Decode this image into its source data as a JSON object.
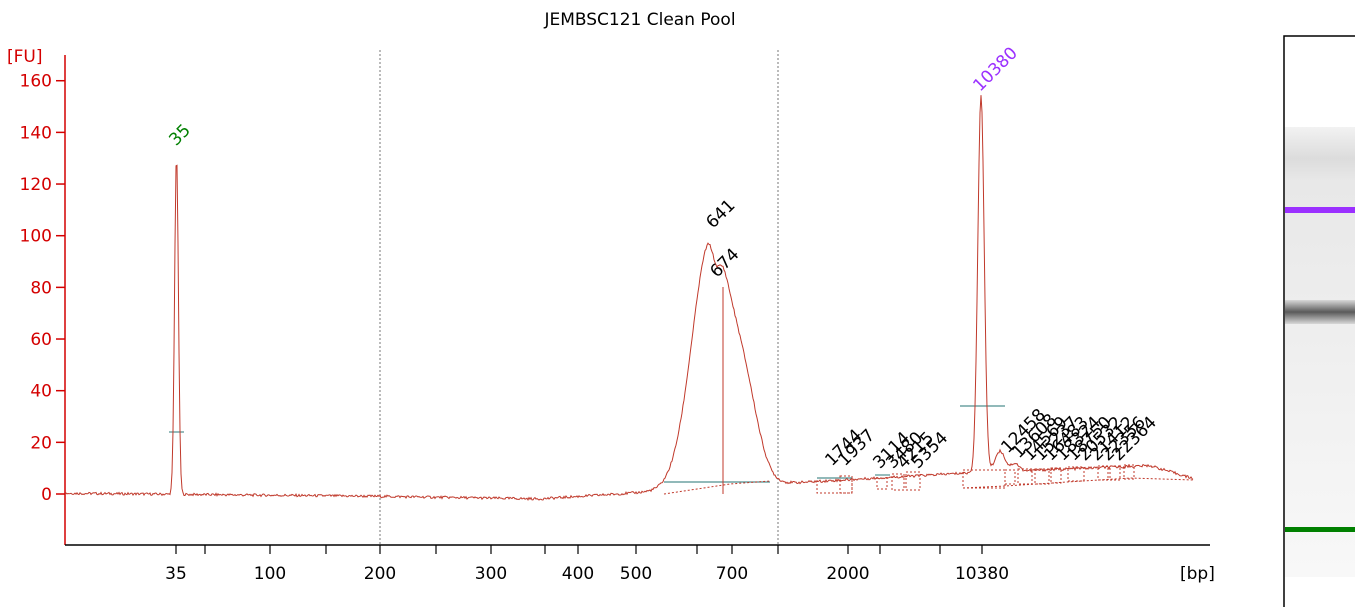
{
  "chart_data": {
    "type": "line",
    "title": "JEMBSC121 Clean Pool",
    "ylabel": "[FU]",
    "xlabel": "[bp]",
    "ylim": [
      -20,
      165
    ],
    "y_ticks": [
      0,
      20,
      40,
      60,
      80,
      100,
      120,
      140,
      160
    ],
    "x_tick_labels": [
      "35",
      "100",
      "200",
      "300",
      "400",
      "500",
      "700",
      "2000",
      "10380"
    ],
    "peak_labels": [
      {
        "label": "35",
        "fu": 133,
        "color": "#008000"
      },
      {
        "label": "641",
        "fu": 101,
        "color": "#000000"
      },
      {
        "label": "674",
        "fu": 82,
        "color": "#000000"
      },
      {
        "label": "10380",
        "fu": 154,
        "color": "#9b30ff"
      },
      {
        "label": "1744",
        "fu": 9,
        "color": "#000000"
      },
      {
        "label": "1937",
        "fu": 9,
        "color": "#000000"
      },
      {
        "label": "3114",
        "fu": 8,
        "color": "#000000"
      },
      {
        "label": "3480",
        "fu": 8,
        "color": "#000000"
      },
      {
        "label": "4215",
        "fu": 8,
        "color": "#000000"
      },
      {
        "label": "5354",
        "fu": 8,
        "color": "#000000"
      },
      {
        "label": "12458",
        "fu": 14,
        "color": "#000000"
      },
      {
        "label": "13608",
        "fu": 12,
        "color": "#000000"
      },
      {
        "label": "14569",
        "fu": 11,
        "color": "#000000"
      },
      {
        "label": "15237",
        "fu": 11,
        "color": "#000000"
      },
      {
        "label": "16483",
        "fu": 11,
        "color": "#000000"
      },
      {
        "label": "18324",
        "fu": 11,
        "color": "#000000"
      },
      {
        "label": "18750",
        "fu": 11,
        "color": "#000000"
      },
      {
        "label": "20532",
        "fu": 11,
        "color": "#000000"
      },
      {
        "label": "21412",
        "fu": 11,
        "color": "#000000"
      },
      {
        "label": "22356",
        "fu": 11,
        "color": "#000000"
      },
      {
        "label": "22364",
        "fu": 11,
        "color": "#000000"
      }
    ],
    "colors": {
      "trace": "#c0392b",
      "axis": "#d40000",
      "baseline": "#4f8f8f",
      "marker_lower": "#008000",
      "marker_upper": "#9b30ff"
    },
    "gel_bands": [
      {
        "name": "upper-marker",
        "bp": "10380",
        "color": "#9b30ff"
      },
      {
        "name": "sample-band",
        "bp": "641"
      },
      {
        "name": "lower-marker",
        "bp": "35",
        "color": "#008000"
      }
    ]
  }
}
